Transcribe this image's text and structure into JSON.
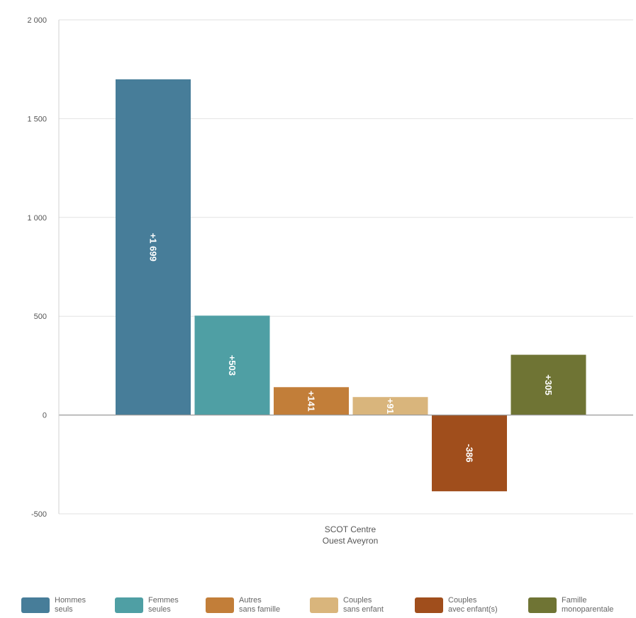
{
  "chart_data": {
    "type": "bar",
    "category_label": [
      "SCOT Centre",
      "Ouest Aveyron"
    ],
    "ylim": [
      -500,
      2000
    ],
    "y_ticks": [
      {
        "value": 2000,
        "label": "2 000"
      },
      {
        "value": 1500,
        "label": "1 500"
      },
      {
        "value": 1000,
        "label": "1 000"
      },
      {
        "value": 500,
        "label": "500"
      },
      {
        "value": 0,
        "label": "0"
      },
      {
        "value": -500,
        "label": "-500"
      }
    ],
    "grid": true,
    "legend_position": "bottom",
    "series": [
      {
        "legend": [
          "Hommes",
          "seuls"
        ],
        "value": 1699,
        "data_label": "+1 699",
        "color": "#477d99"
      },
      {
        "legend": [
          "Femmes",
          "seules"
        ],
        "value": 503,
        "data_label": "+503",
        "color": "#4f9fa4"
      },
      {
        "legend": [
          "Autres",
          "sans famille"
        ],
        "value": 141,
        "data_label": "+141",
        "color": "#c27e39"
      },
      {
        "legend": [
          "Couples",
          "sans enfant"
        ],
        "value": 91,
        "data_label": "+91",
        "color": "#d9b57c"
      },
      {
        "legend": [
          "Couples",
          "avec enfant(s)"
        ],
        "value": -386,
        "data_label": "-386",
        "color": "#a04e1c"
      },
      {
        "legend": [
          "Famille",
          "monoparentale"
        ],
        "value": 305,
        "data_label": "+305",
        "color": "#6f7434"
      }
    ]
  }
}
